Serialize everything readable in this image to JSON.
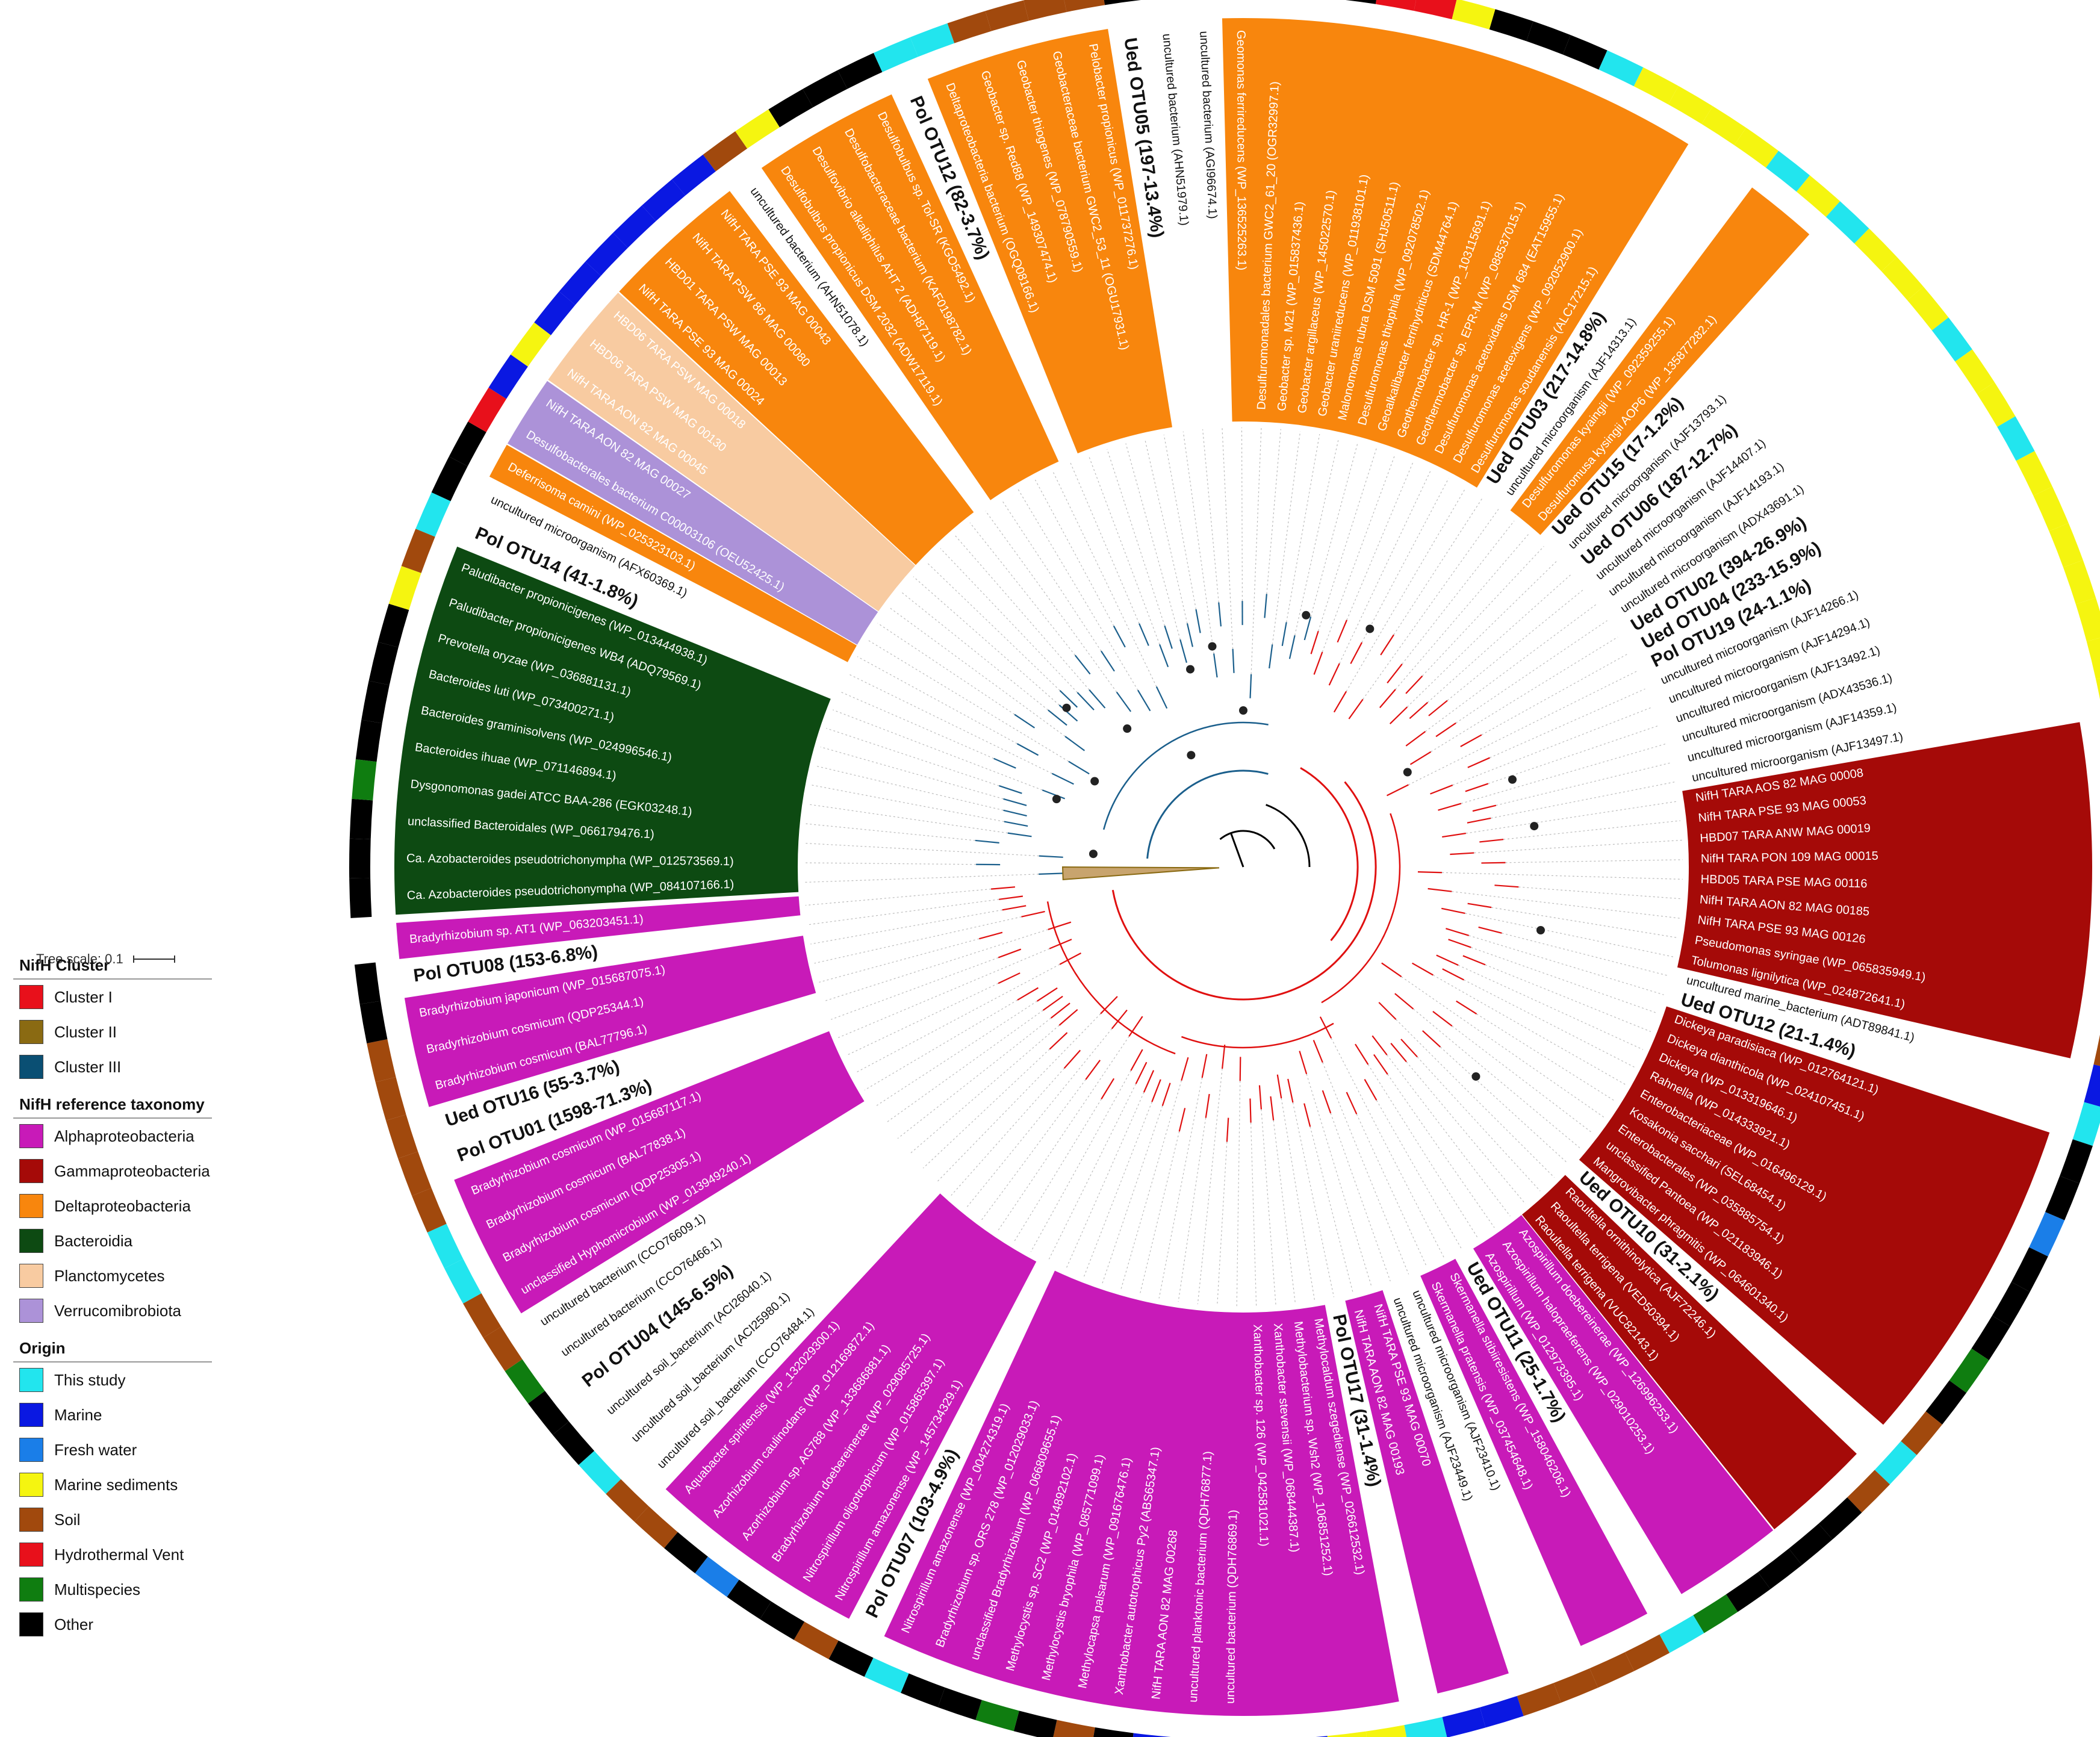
{
  "tree_scale": {
    "label": "Tree scale: 0.1"
  },
  "legend": {
    "cluster": {
      "title": "NifH Cluster",
      "items": [
        {
          "label": "Cluster I",
          "color": "#e8101b"
        },
        {
          "label": "Cluster II",
          "color": "#8a6a12"
        },
        {
          "label": "Cluster III",
          "color": "#0a4f73"
        }
      ]
    },
    "taxonomy": {
      "title": "NifH reference taxonomy",
      "items": [
        {
          "label": "Alphaproteobacteria",
          "color": "#c81ab8"
        },
        {
          "label": "Gammaproteobacteria",
          "color": "#a50a08"
        },
        {
          "label": "Deltaproteobacteria",
          "color": "#f8860d"
        },
        {
          "label": "Bacteroidia",
          "color": "#0d4a12"
        },
        {
          "label": "Planctomycetes",
          "color": "#f8cba1"
        },
        {
          "label": "Verrucomibrobiota",
          "color": "#ac92d8"
        }
      ]
    },
    "origin": {
      "title": "Origin",
      "items": [
        {
          "label": "This study",
          "color": "#22e5ee"
        },
        {
          "label": "Marine",
          "color": "#0a18e2"
        },
        {
          "label": "Fresh water",
          "color": "#1a7ee8"
        },
        {
          "label": "Marine sediments",
          "color": "#f5f510"
        },
        {
          "label": "Soil",
          "color": "#a1490d"
        },
        {
          "label": "Hydrothermal Vent",
          "color": "#e8101b"
        },
        {
          "label": "Multispecies",
          "color": "#0f7d10"
        },
        {
          "label": "Other",
          "color": "#000000"
        }
      ]
    }
  },
  "tree": {
    "leaves": [
      {
        "label": "Ca. Azobacteroides pseudotrichonympha (WP_084107166.1)",
        "tax": "bact",
        "origin": "other"
      },
      {
        "label": "Ca. Azobacteroides pseudotrichonympha (WP_012573569.1)",
        "tax": "bact",
        "origin": "other"
      },
      {
        "label": "unclassified Bacteroidales (WP_066179476.1)",
        "tax": "bact",
        "origin": "other"
      },
      {
        "label": "Dysgonomonas gadei ATCC BAA-286 (EGK03248.1)",
        "tax": "bact",
        "origin": "multi"
      },
      {
        "label": "Bacteroides ihuae (WP_071146894.1)",
        "tax": "bact",
        "origin": "other"
      },
      {
        "label": "Bacteroides graminisolvens (WP_024996546.1)",
        "tax": "bact",
        "origin": "other"
      },
      {
        "label": "Bacteroides luti (WP_073400271.1)",
        "tax": "bact",
        "origin": "other"
      },
      {
        "label": "Prevotella oryzae (WP_036881131.1)",
        "tax": "bact",
        "origin": "other"
      },
      {
        "label": "Paludibacter propionicigenes WB4 (ADQ79569.1)",
        "tax": "bact",
        "origin": "msed"
      },
      {
        "label": "Paludibacter propionicigenes (WP_013444938.1)",
        "tax": "bact",
        "origin": "soil"
      },
      {
        "label": "Pol OTU14 (41-1.8%)",
        "tax": "otu",
        "origin": "study"
      },
      {
        "label": "uncultured microorganism (AFX60369.1)",
        "tax": "none",
        "origin": "other"
      },
      {
        "label": "Deferrisoma camini (WP_025323103.1)",
        "tax": "delta",
        "origin": "other"
      },
      {
        "label": "Desulfobacterales bacterium C00003106 (OEU52425.1)",
        "tax": "verr",
        "origin": "hydro"
      },
      {
        "label": "NifH TARA AON 82 MAG 00027",
        "tax": "verr",
        "origin": "marine"
      },
      {
        "label": "NifH TARA AON 82 MAG 00045",
        "tax": "planct",
        "origin": "msed"
      },
      {
        "label": "HBD06 TARA PSW MAG 00130",
        "tax": "planct",
        "origin": "marine"
      },
      {
        "label": "HBD06 TARA PSW MAG 00018",
        "tax": "planct",
        "origin": "marine"
      },
      {
        "label": "NifH TARA PSE 93 MAG 00024",
        "tax": "delta",
        "origin": "marine"
      },
      {
        "label": "HBD01 TARA PSW MAG 00013",
        "tax": "delta",
        "origin": "marine"
      },
      {
        "label": "NifH TARA PSW 86 MAG 00080",
        "tax": "delta",
        "origin": "marine"
      },
      {
        "label": "NifH TARA PSE 93 MAG 00043",
        "tax": "delta",
        "origin": "marine"
      },
      {
        "label": "uncultured bacterium (AHN51078.1)",
        "tax": "none",
        "origin": "soil"
      },
      {
        "label": "Desulfobulbus propionicus DSM 2032 (ADW17119.1)",
        "tax": "delta",
        "origin": "msed"
      },
      {
        "label": "Desulfovibrio alkaliphilus AHT 2 (ADH87119.1)",
        "tax": "delta",
        "origin": "other"
      },
      {
        "label": "Desulfobacteraceae bacterium (KAF0198782.1)",
        "tax": "delta",
        "origin": "other"
      },
      {
        "label": "Desulfobulbus sp. Tol-SR (KGO5492.1)",
        "tax": "delta",
        "origin": "other"
      },
      {
        "label": "Pol OTU12 (82-3.7%)",
        "tax": "otu",
        "origin": "study"
      },
      {
        "label": "Deltaproteobacteria bacterium (OGQ08166.1)",
        "tax": "delta",
        "origin": "study"
      },
      {
        "label": "Geobacter sp. Red88 (WP_149307474.1)",
        "tax": "delta",
        "origin": "soil"
      },
      {
        "label": "Geobacter thiogenes (WP_078790559.1)",
        "tax": "delta",
        "origin": "soil"
      },
      {
        "label": "Geobacteraceae bacterium GWC2_53_11 (OGU17931.1)",
        "tax": "delta",
        "origin": "soil"
      },
      {
        "label": "Pelobacter propionicus (WP_011737276.1)",
        "tax": "delta",
        "origin": "soil"
      },
      {
        "label": "Ued OTU05 (197-13.4%)",
        "tax": "otu",
        "origin": "other"
      },
      {
        "label": "uncultured bacterium (AHN51979.1)",
        "tax": "none",
        "origin": "other"
      },
      {
        "label": "uncultured bacterium (AGI96674.1)",
        "tax": "none",
        "origin": "other"
      },
      {
        "label": "Geomonas ferrireducens (WP_136525263.1)",
        "tax": "delta",
        "origin": "other"
      },
      {
        "label": "Desulfuromonadales bacterium GWC2_61_20 (OGR32997.1)",
        "tax": "delta",
        "origin": "msed"
      },
      {
        "label": "Geobacter sp. M21 (WP_015837436.1)",
        "tax": "delta",
        "origin": "other"
      },
      {
        "label": "Geobacter argillaceus (WP_145022570.1)",
        "tax": "delta",
        "origin": "other"
      },
      {
        "label": "Geobacter uraniireducens (WP_011938101.1)",
        "tax": "delta",
        "origin": "hydro"
      },
      {
        "label": "Malonomonas rubra DSM 5091 (SHJ50511.1)",
        "tax": "delta",
        "origin": "hydro"
      },
      {
        "label": "Desulfuromonas thiophila (WP_092078502.1)",
        "tax": "delta",
        "origin": "msed"
      },
      {
        "label": "Geoalkalibacter ferrihydriticus (SDM44764.1)",
        "tax": "delta",
        "origin": "other"
      },
      {
        "label": "Geothermobacter sp. HR-1 (WP_103115691.1)",
        "tax": "delta",
        "origin": "other"
      },
      {
        "label": "Geothermobacter sp. EPR-M (WP_088537015.1)",
        "tax": "delta",
        "origin": "other"
      },
      {
        "label": "Desulfuromonas acetoxidans DSM 684 (EAT15955.1)",
        "tax": "delta",
        "origin": "study"
      },
      {
        "label": "Desulfuromonas acetexigens (WP_092052900.1)",
        "tax": "delta",
        "origin": "msed"
      },
      {
        "label": "Desulfuromonas soudanensis (ALC17215.1)",
        "tax": "delta",
        "origin": "msed"
      },
      {
        "label": "Ued OTU03 (217-14.8%)",
        "tax": "otu",
        "origin": "msed"
      },
      {
        "label": "uncultured microorganism (AJF14313.1)",
        "tax": "none",
        "origin": "msed"
      },
      {
        "label": "Desulfuromonas kyaingii (WP_092359255.1)",
        "tax": "delta",
        "origin": "study"
      },
      {
        "label": "Desulfuromusa kysingii AOP6 (WP_135877282.1)",
        "tax": "delta",
        "origin": "msed"
      },
      {
        "label": "Ued OTU15 (17-1.2%)",
        "tax": "otu",
        "origin": "study"
      },
      {
        "label": "uncultured microorganism (AJF13793.1)",
        "tax": "none",
        "origin": "msed"
      },
      {
        "label": "Ued OTU06 (187-12.7%)",
        "tax": "otu",
        "origin": "msed"
      },
      {
        "label": "uncultured microorganism (AJF14407.1)",
        "tax": "none",
        "origin": "msed"
      },
      {
        "label": "uncultured microorganism (AJF14193.1)",
        "tax": "none",
        "origin": "study"
      },
      {
        "label": "uncultured microorganism (ADX43691.1)",
        "tax": "none",
        "origin": "msed"
      },
      {
        "label": "Ued OTU02 (394-26.9%)",
        "tax": "otu",
        "origin": "msed"
      },
      {
        "label": "Ued OTU04 (233-15.9%)",
        "tax": "otu",
        "origin": "study"
      },
      {
        "label": "Pol OTU19 (24-1.1%)",
        "tax": "otu",
        "origin": "msed"
      },
      {
        "label": "uncultured microorganism (AJF14266.1)",
        "tax": "none",
        "origin": "msed"
      },
      {
        "label": "uncultured microorganism (AJF14294.1)",
        "tax": "none",
        "origin": "msed"
      },
      {
        "label": "uncultured microorganism (AJF13492.1)",
        "tax": "none",
        "origin": "msed"
      },
      {
        "label": "uncultured microorganism (ADX43536.1)",
        "tax": "none",
        "origin": "msed"
      },
      {
        "label": "uncultured microorganism (AJF14359.1)",
        "tax": "none",
        "origin": "msed"
      },
      {
        "label": "uncultured microorganism (AJF13497.1)",
        "tax": "none",
        "origin": "msed"
      },
      {
        "label": "NifH TARA AOS 82 MAG 00008",
        "tax": "gamma",
        "origin": "marine"
      },
      {
        "label": "NifH TARA PSE 93 MAG 00053",
        "tax": "gamma",
        "origin": "marine"
      },
      {
        "label": "HBD07 TARA ANW MAG 00019",
        "tax": "gamma",
        "origin": "marine"
      },
      {
        "label": "NifH TARA PON 109 MAG 00015",
        "tax": "gamma",
        "origin": "marine"
      },
      {
        "label": "HBD05 TARA PSE MAG 00116",
        "tax": "gamma",
        "origin": "marine"
      },
      {
        "label": "NifH TARA AON 82 MAG 00185",
        "tax": "gamma",
        "origin": "marine"
      },
      {
        "label": "NifH TARA PSE 93 MAG 00126",
        "tax": "gamma",
        "origin": "marine"
      },
      {
        "label": "Pseudomonas syringae (WP_065835949.1)",
        "tax": "gamma",
        "origin": "other"
      },
      {
        "label": "Tolumonas lignilytica (WP_024872641.1)",
        "tax": "gamma",
        "origin": "soil"
      },
      {
        "label": "uncultured marine_bacterium (ADT89841.1)",
        "tax": "none",
        "origin": "marine"
      },
      {
        "label": "Ued OTU12 (21-1.4%)",
        "tax": "otu",
        "origin": "study"
      },
      {
        "label": "Dickeya paradisiaca (WP_012764121.1)",
        "tax": "gamma",
        "origin": "other"
      },
      {
        "label": "Dickeya dianthicola (WP_024107451.1)",
        "tax": "gamma",
        "origin": "other"
      },
      {
        "label": "Dickeya (WP_013319646.1)",
        "tax": "gamma",
        "origin": "fresh"
      },
      {
        "label": "Rahnella (WP_014333921.1)",
        "tax": "gamma",
        "origin": "other"
      },
      {
        "label": "Enterobacteriaceae (WP_016496129.1)",
        "tax": "gamma",
        "origin": "other"
      },
      {
        "label": "Kosakonia sacchari (SEL68454.1)",
        "tax": "gamma",
        "origin": "other"
      },
      {
        "label": "Enterobacterales (WP_035885754.1)",
        "tax": "gamma",
        "origin": "multi"
      },
      {
        "label": "unclassified Pantoea (WP_021183946.1)",
        "tax": "gamma",
        "origin": "other"
      },
      {
        "label": "Mangrovibacter phragmitis (WP_064601340.1)",
        "tax": "gamma",
        "origin": "soil"
      },
      {
        "label": "Ued OTU10 (31-2.1%)",
        "tax": "otu",
        "origin": "study"
      },
      {
        "label": "Raoultella ornithinolytica (AJF72246.1)",
        "tax": "gamma",
        "origin": "soil"
      },
      {
        "label": "Raoultella terrigena (VED50394.1)",
        "tax": "gamma",
        "origin": "other"
      },
      {
        "label": "Raoultella terrigena (VUC82143.1)",
        "tax": "gamma",
        "origin": "other"
      },
      {
        "label": "Azospirillum doebereinerae (WP_126996253.1)",
        "tax": "alpha",
        "origin": "other"
      },
      {
        "label": "Azospirillum halopraeferens (WP_029010253.1)",
        "tax": "alpha",
        "origin": "other"
      },
      {
        "label": "Azospirillum (WP_012973395.1)",
        "tax": "alpha",
        "origin": "multi"
      },
      {
        "label": "Ued OTU11 (25-1.7%)",
        "tax": "otu",
        "origin": "study"
      },
      {
        "label": "Skermanella stibiiresistens (WP_158046206.1)",
        "tax": "alpha",
        "origin": "soil"
      },
      {
        "label": "Skermanella pratensis (WP_037454648.1)",
        "tax": "alpha",
        "origin": "soil"
      },
      {
        "label": "uncultured microorganism (AJF23410.1)",
        "tax": "none",
        "origin": "soil"
      },
      {
        "label": "uncultured microorganism (AJF23449.1)",
        "tax": "none",
        "origin": "soil"
      },
      {
        "label": "NifH TARA PSE 93 MAG 00070",
        "tax": "alpha",
        "origin": "marine"
      },
      {
        "label": "NifH TARA AON 82 MAG 00193",
        "tax": "alpha",
        "origin": "marine"
      },
      {
        "label": "Pol OTU17 (31-1.4%)",
        "tax": "otu",
        "origin": "study"
      },
      {
        "label": "Methylocaldum szegediense (WP_026612532.1)",
        "tax": "alpha",
        "origin": "msed"
      },
      {
        "label": "Methylobacterium sp. Wsh2 (WP_106851252.1)",
        "tax": "alpha",
        "origin": "msed"
      },
      {
        "label": "Xanthobacter stevensii (WP_068444387.1)",
        "tax": "alpha",
        "origin": "marine"
      },
      {
        "label": "Xanthobacter sp. 126 (WP_042581021.1)",
        "tax": "alpha",
        "origin": "marine"
      },
      {
        "label": "uncultured bacterium (QDH76869.1)",
        "tax": "alpha",
        "origin": "marine"
      },
      {
        "label": "uncultured planktonic bacterium (QDH76877.1)",
        "tax": "alpha",
        "origin": "marine"
      },
      {
        "label": "NifH TARA AON 82 MAG 00268",
        "tax": "alpha",
        "origin": "marine"
      },
      {
        "label": "Xanthobacter autotrophicus Py2 (ABS65347.1)",
        "tax": "alpha",
        "origin": "other"
      },
      {
        "label": "Methylocapsa palsarum (WP_091676476.1)",
        "tax": "alpha",
        "origin": "soil"
      },
      {
        "label": "Methylocystis bryophila (WP_085771099.1)",
        "tax": "alpha",
        "origin": "other"
      },
      {
        "label": "Methylocystis sp. SC2 (WP_014892102.1)",
        "tax": "alpha",
        "origin": "multi"
      },
      {
        "label": "unclassified Bradyrhizobium (WP_066809655.1)",
        "tax": "alpha",
        "origin": "other"
      },
      {
        "label": "Bradyrhizobium sp. ORS 278 (WP_012029033.1)",
        "tax": "alpha",
        "origin": "other"
      },
      {
        "label": "Nitrospirillum amazonense (WP_004274319.1)",
        "tax": "alpha",
        "origin": "study"
      },
      {
        "label": "Pol OTU07 (103-4.9%)",
        "tax": "otu",
        "origin": "other"
      },
      {
        "label": "Nitrospirillum amazonense (WP_145734329.1)",
        "tax": "alpha",
        "origin": "soil"
      },
      {
        "label": "Nitrospirillum oligotrophicum (WP_015865397.1)",
        "tax": "alpha",
        "origin": "other"
      },
      {
        "label": "Bradyrhizobium doebereinerae (WP_029085725.1)",
        "tax": "alpha",
        "origin": "other"
      },
      {
        "label": "Azorhizobium sp. AG788 (WP_133686881.1)",
        "tax": "alpha",
        "origin": "fresh"
      },
      {
        "label": "Azorhizobium caulinodans (WP_012169872.1)",
        "tax": "alpha",
        "origin": "other"
      },
      {
        "label": "Aquabacter spiritensis (WP_132029300.1)",
        "tax": "alpha",
        "origin": "soil"
      },
      {
        "label": "uncultured soil_bacterium (CCO76484.1)",
        "tax": "none",
        "origin": "soil"
      },
      {
        "label": "uncultured soil_bacterium (ACI25980.1)",
        "tax": "none",
        "origin": "study"
      },
      {
        "label": "uncultured soil_bacterium (ACI26040.1)",
        "tax": "none",
        "origin": "other"
      },
      {
        "label": "Pol OTU04 (145-6.5%)",
        "tax": "otu",
        "origin": "other"
      },
      {
        "label": "uncultured bacterium (CCO76466.1)",
        "tax": "none",
        "origin": "multi"
      },
      {
        "label": "uncultured bacterium (CCO76609.1)",
        "tax": "none",
        "origin": "soil"
      },
      {
        "label": "unclassified Hyphomicrobium (WP_013949240.1)",
        "tax": "alpha",
        "origin": "soil"
      },
      {
        "label": "Bradyrhizobium cosmicum (QDP25305.1)",
        "tax": "alpha",
        "origin": "study"
      },
      {
        "label": "Bradyrhizobium cosmicum (BAL77838.1)",
        "tax": "alpha",
        "origin": "study"
      },
      {
        "label": "Bradyrhizobium cosmicum (WP_015687117.1)",
        "tax": "alpha",
        "origin": "soil"
      },
      {
        "label": "Pol OTU01 (1598-71.3%)",
        "tax": "otu",
        "origin": "soil"
      },
      {
        "label": "Ued OTU16 (55-3.7%)",
        "tax": "otu",
        "origin": "soil"
      },
      {
        "label": "Bradyrhizobium cosmicum (BAL77796.1)",
        "tax": "alpha",
        "origin": "soil"
      },
      {
        "label": "Bradyrhizobium cosmicum (QDP25344.1)",
        "tax": "alpha",
        "origin": "soil"
      },
      {
        "label": "Bradyrhizobium japonicum (WP_015687075.1)",
        "tax": "alpha",
        "origin": "other"
      },
      {
        "label": "Pol OTU08 (153-6.8%)",
        "tax": "otu",
        "origin": "other"
      },
      {
        "label": "Bradyrhizobium sp. AT1 (WP_063203451.1)",
        "tax": "alpha",
        "origin": "none"
      }
    ]
  }
}
